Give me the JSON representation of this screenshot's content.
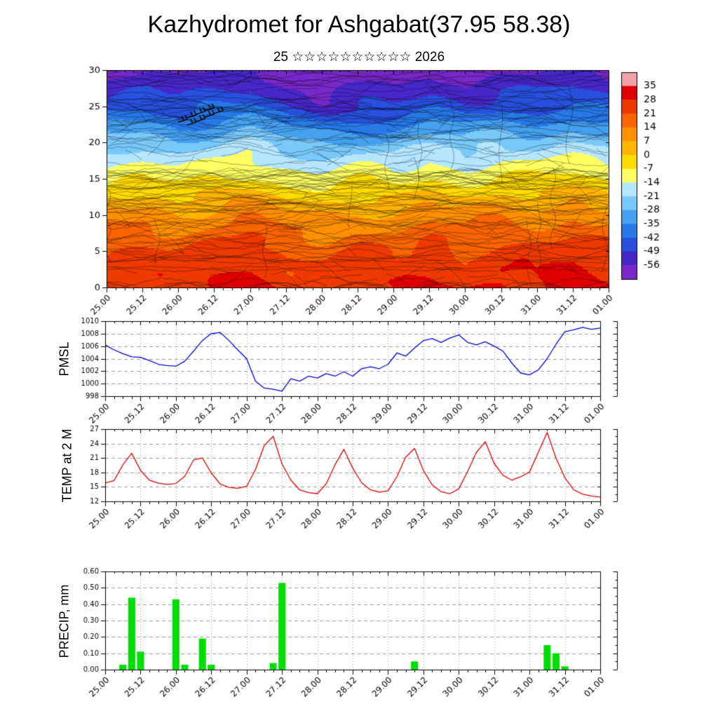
{
  "header": {
    "title": "Kazhydromet for Ashgabat(37.95 58.38)",
    "subtitle": "25 ☆☆☆☆☆☆☆☆☆☆ 2026"
  },
  "time_axis": {
    "total_hours": 168,
    "major_step_hours": 12,
    "minor_step_hours": 3,
    "ticklabels": [
      "25.00",
      "25.12",
      "26.00",
      "26.12",
      "27.00",
      "27.12",
      "28.00",
      "28.12",
      "29.00",
      "29.12",
      "30.00",
      "30.12",
      "31.00",
      "31.12",
      "01.00"
    ]
  },
  "chart_data": [
    {
      "id": "temperature_height_cross_section",
      "type": "heatmap",
      "label": "",
      "ylim": [
        0,
        30
      ],
      "yticks": [
        0,
        5,
        10,
        15,
        20,
        25,
        30
      ],
      "ytick_labels": [
        "0",
        "5",
        "10",
        "15",
        "20",
        "25",
        "30"
      ],
      "grid_times_hours": [
        0,
        12,
        24,
        36,
        48,
        60,
        72,
        84,
        96,
        108,
        120,
        132,
        144,
        156,
        168
      ],
      "grid_heights": [
        0,
        5,
        10,
        15,
        20,
        25,
        30
      ],
      "values_by_height": [
        [
          28,
          30,
          26,
          29,
          31,
          27,
          25,
          28,
          26,
          30,
          27,
          31,
          29,
          31,
          28
        ],
        [
          22,
          24,
          20,
          23,
          26,
          21,
          19,
          22,
          20,
          24,
          21,
          25,
          23,
          26,
          22
        ],
        [
          10,
          12,
          8,
          11,
          14,
          9,
          7,
          10,
          8,
          12,
          9,
          13,
          11,
          14,
          10
        ],
        [
          -8,
          -6,
          -10,
          -7,
          -4,
          -9,
          -11,
          -8,
          -10,
          -6,
          -9,
          -5,
          -7,
          -4,
          -8
        ],
        [
          -24,
          -22,
          -26,
          -23,
          -20,
          -25,
          -28,
          -26,
          -27,
          -22,
          -25,
          -21,
          -23,
          -20,
          -24
        ],
        [
          -44,
          -42,
          -46,
          -43,
          -40,
          -48,
          -52,
          -50,
          -49,
          -44,
          -47,
          -43,
          -45,
          -42,
          -44
        ],
        [
          -58,
          -56,
          -60,
          -57,
          -55,
          -62,
          -64,
          -62,
          -61,
          -57,
          -60,
          -56,
          -58,
          -55,
          -58
        ]
      ],
      "colorbar": {
        "boundaries": [
          35,
          28,
          21,
          14,
          7,
          0,
          -7,
          -14,
          -21,
          -28,
          -35,
          -42,
          -49,
          -56
        ],
        "boundary_labels": [
          "35",
          "28",
          "21",
          "14",
          "7",
          "0",
          "-7",
          "-14",
          "-21",
          "-28",
          "-35",
          "-42",
          "-49",
          "-56"
        ],
        "colors": [
          "#f2a0a8",
          "#e00000",
          "#ee3a00",
          "#f86400",
          "#ff9000",
          "#ffb400",
          "#ffdc00",
          "#ffff64",
          "#b4e6ff",
          "#78c8fa",
          "#46a0f0",
          "#2878e6",
          "#2850dc",
          "#4628c8",
          "#7828c8"
        ]
      },
      "texture_seed": 1337,
      "wind_barbs": [
        {
          "t": 27,
          "h": 23.2
        },
        {
          "t": 30,
          "h": 23.8
        },
        {
          "t": 33,
          "h": 24.3
        },
        {
          "t": 36,
          "h": 24.8
        },
        {
          "t": 30,
          "h": 22.8
        },
        {
          "t": 33,
          "h": 23.3
        },
        {
          "t": 36,
          "h": 23.9
        },
        {
          "t": 39,
          "h": 24.4
        }
      ]
    },
    {
      "id": "pmsl",
      "type": "line",
      "label": "PMSL",
      "color": "#0000dd",
      "ylim": [
        998,
        1010
      ],
      "yticks": [
        998,
        1000,
        1002,
        1004,
        1006,
        1008,
        1010
      ],
      "ytick_labels": [
        "998",
        "1000",
        "1002",
        "1004",
        "1006",
        "1008",
        "1010"
      ],
      "x_step_hours": 3,
      "values": [
        1006.2,
        1005.4,
        1004.8,
        1004.3,
        1004.2,
        1003.7,
        1003.1,
        1002.9,
        1002.8,
        1003.6,
        1005.2,
        1006.9,
        1008.0,
        1008.2,
        1006.9,
        1005.4,
        1004.0,
        1000.4,
        999.3,
        999.1,
        998.8,
        1000.8,
        1000.4,
        1001.2,
        1000.9,
        1001.6,
        1001.2,
        1001.9,
        1001.2,
        1002.4,
        1002.7,
        1002.4,
        1003.1,
        1004.9,
        1004.4,
        1005.7,
        1006.9,
        1007.2,
        1006.6,
        1007.3,
        1007.8,
        1006.6,
        1006.2,
        1006.7,
        1006.0,
        1005.2,
        1003.3,
        1001.7,
        1001.4,
        1002.2,
        1004.0,
        1006.3,
        1008.3,
        1008.6,
        1009.0,
        1008.7,
        1008.9
      ]
    },
    {
      "id": "temp_2m",
      "type": "line",
      "label": "TEMP at 2 M",
      "color": "#dd0000",
      "ylim": [
        12,
        27
      ],
      "yticks": [
        12,
        15,
        18,
        21,
        24,
        27
      ],
      "ytick_labels": [
        "12",
        "15",
        "18",
        "21",
        "24",
        "27"
      ],
      "x_step_hours": 3,
      "values": [
        15.8,
        16.3,
        19.6,
        22.0,
        18.4,
        16.4,
        15.8,
        15.5,
        15.7,
        17.2,
        20.6,
        21.0,
        17.9,
        15.6,
        14.9,
        14.7,
        15.1,
        18.6,
        23.6,
        25.5,
        19.8,
        16.4,
        14.4,
        13.8,
        13.6,
        15.6,
        19.6,
        22.8,
        18.9,
        15.9,
        14.4,
        13.9,
        14.2,
        17.1,
        21.2,
        23.0,
        18.4,
        15.4,
        14.0,
        13.6,
        14.6,
        18.2,
        22.2,
        24.4,
        19.9,
        17.4,
        16.4,
        17.1,
        18.1,
        22.2,
        26.3,
        21.0,
        16.9,
        14.4,
        13.5,
        13.1,
        12.9
      ]
    },
    {
      "id": "precip",
      "type": "bar",
      "label": "PRECIP, mm",
      "color": "#00dd00",
      "ylim": [
        0,
        0.6
      ],
      "yticks": [
        0,
        0.1,
        0.2,
        0.3,
        0.4,
        0.5,
        0.6
      ],
      "ytick_labels": [
        "0.00",
        "0.10",
        "0.20",
        "0.30",
        "0.40",
        "0.50",
        "0.60"
      ],
      "x_step_hours": 3,
      "values": [
        0,
        0,
        0.03,
        0.44,
        0.11,
        0,
        0,
        0,
        0.43,
        0.03,
        0,
        0.19,
        0.03,
        0,
        0,
        0,
        0,
        0,
        0,
        0.04,
        0.53,
        0,
        0,
        0,
        0,
        0,
        0,
        0,
        0,
        0,
        0,
        0,
        0,
        0,
        0,
        0.05,
        0,
        0,
        0,
        0,
        0,
        0,
        0,
        0,
        0,
        0,
        0,
        0,
        0,
        0,
        0.15,
        0.1,
        0.02,
        0,
        0,
        0,
        0
      ]
    }
  ]
}
